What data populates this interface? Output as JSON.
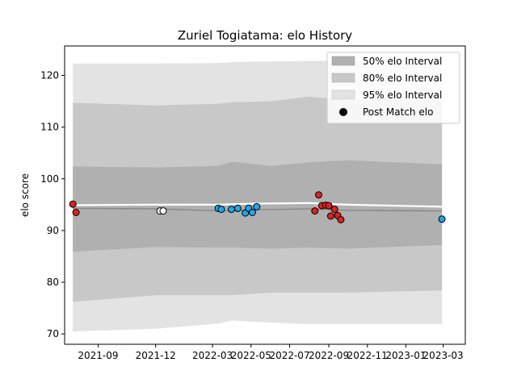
{
  "chart_data": {
    "type": "line",
    "title": "Zuriel Togiatama: elo History",
    "xlabel": "",
    "ylabel": "elo score",
    "xlim": [
      "2021-07-10",
      "2023-04-05"
    ],
    "ylim": [
      68,
      125.7
    ],
    "x_ticks": [
      {
        "date": "2021-09-01",
        "label": "2021-09"
      },
      {
        "date": "2021-12-01",
        "label": "2021-12"
      },
      {
        "date": "2022-03-01",
        "label": "2022-03"
      },
      {
        "date": "2022-05-01",
        "label": "2022-05"
      },
      {
        "date": "2022-07-01",
        "label": "2022-07"
      },
      {
        "date": "2022-09-01",
        "label": "2022-09"
      },
      {
        "date": "2022-11-01",
        "label": "2022-11"
      },
      {
        "date": "2023-01-01",
        "label": "2023-01"
      },
      {
        "date": "2023-03-01",
        "label": "2023-03"
      }
    ],
    "x_tick_display": [
      "2021-09",
      "2021-12",
      "2022-03",
      "2022-05",
      "2022-07",
      "2022-09",
      "2022-11",
      "2023-01",
      "2023-03"
    ],
    "y_ticks": [
      "70",
      "80",
      "90",
      "100",
      "110",
      "120"
    ],
    "grid": false,
    "legend_position": "top-right",
    "legend": [
      {
        "label": "50% elo Interval",
        "color": "#b0b0b0",
        "kind": "patch"
      },
      {
        "label": "80% elo Interval",
        "color": "#c8c8c8",
        "kind": "patch"
      },
      {
        "label": "95% elo Interval",
        "color": "#e3e3e3",
        "kind": "patch"
      },
      {
        "label": "Post Match elo",
        "color": "#000000",
        "kind": "marker"
      }
    ],
    "bands": [
      {
        "name": "95% elo Interval",
        "color": "#e3e3e3",
        "x": [
          "2021-07-23",
          "2021-12-01",
          "2022-03-10",
          "2022-04-01",
          "2022-06-01",
          "2022-08-01",
          "2022-10-01",
          "2023-02-27"
        ],
        "lower": [
          70.5,
          71.0,
          72.0,
          72.6,
          72.2,
          71.9,
          71.9,
          71.9
        ],
        "upper": [
          122.3,
          122.3,
          122.4,
          122.6,
          122.7,
          122.8,
          122.8,
          122.8
        ]
      },
      {
        "name": "80% elo Interval",
        "color": "#c8c8c8",
        "x": [
          "2021-07-23",
          "2021-12-01",
          "2022-03-10",
          "2022-04-01",
          "2022-06-01",
          "2022-08-01",
          "2022-10-01",
          "2023-02-27"
        ],
        "lower": [
          76.2,
          77.5,
          77.5,
          77.5,
          78.0,
          78.0,
          78.0,
          78.4
        ],
        "upper": [
          114.7,
          114.2,
          114.5,
          114.8,
          115.0,
          115.9,
          115.2,
          115.5
        ]
      },
      {
        "name": "50% elo Interval",
        "color": "#b0b0b0",
        "x": [
          "2021-07-23",
          "2021-12-01",
          "2022-03-10",
          "2022-04-01",
          "2022-06-01",
          "2022-08-01",
          "2022-10-01",
          "2023-02-27"
        ],
        "lower": [
          85.9,
          86.8,
          86.7,
          86.7,
          86.5,
          86.7,
          86.5,
          87.2
        ],
        "upper": [
          102.4,
          102.2,
          102.5,
          103.3,
          102.5,
          103.2,
          103.6,
          102.8
        ]
      }
    ],
    "lines": [
      {
        "name": "median",
        "color": "#888888",
        "x": [
          "2021-07-23",
          "2021-12-01",
          "2022-03-10",
          "2022-05-01",
          "2022-08-01",
          "2022-10-01",
          "2023-02-27"
        ],
        "y": [
          94.3,
          94.2,
          93.8,
          94.0,
          94.2,
          93.9,
          93.8
        ]
      },
      {
        "name": "mean",
        "color": "#ffffff",
        "x": [
          "2021-07-23",
          "2021-12-01",
          "2022-03-10",
          "2022-05-01",
          "2022-08-01",
          "2022-10-01",
          "2023-02-27"
        ],
        "y": [
          94.9,
          95.0,
          95.0,
          95.2,
          95.3,
          95.0,
          94.6
        ]
      }
    ],
    "series": [
      {
        "color": "#e02020",
        "points": [
          [
            "2021-07-23",
            95.1
          ],
          [
            "2021-07-28",
            93.5
          ],
          [
            "2022-08-10",
            93.8
          ],
          [
            "2022-08-16",
            96.9
          ],
          [
            "2022-08-21",
            94.8
          ],
          [
            "2022-08-27",
            94.9
          ],
          [
            "2022-09-01",
            94.8
          ],
          [
            "2022-09-04",
            92.8
          ],
          [
            "2022-09-10",
            94.1
          ],
          [
            "2022-09-15",
            92.9
          ],
          [
            "2022-09-20",
            92.1
          ]
        ]
      },
      {
        "color": "#ffffff",
        "points": [
          [
            "2021-12-08",
            93.8
          ],
          [
            "2021-12-13",
            93.8
          ]
        ]
      },
      {
        "color": "#1fa8e8",
        "points": [
          [
            "2022-03-10",
            94.3
          ],
          [
            "2022-03-15",
            94.1
          ],
          [
            "2022-03-31",
            94.1
          ],
          [
            "2022-04-10",
            94.3
          ],
          [
            "2022-04-22",
            93.4
          ],
          [
            "2022-04-27",
            94.3
          ],
          [
            "2022-05-03",
            93.5
          ],
          [
            "2022-05-10",
            94.6
          ],
          [
            "2023-02-27",
            92.2
          ]
        ]
      }
    ]
  }
}
